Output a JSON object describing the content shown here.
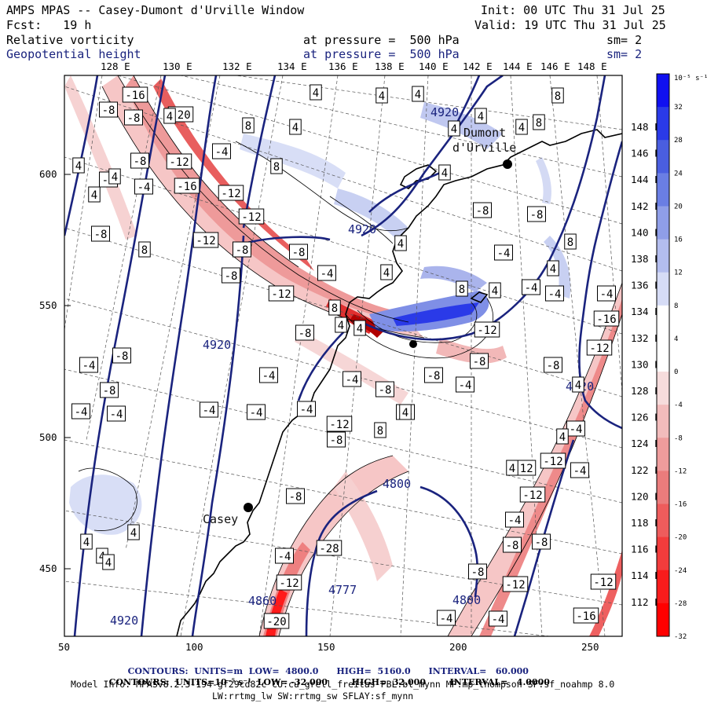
{
  "header": {
    "title": "AMPS MPAS -- Casey-Dumont d'Urville Window",
    "init": "Init: 00 UTC Thu 31 Jul 25",
    "fcst": "Fcst:   19 h",
    "valid": "Valid: 19 UTC Thu 31 Jul 25",
    "field1": "Relative vorticity",
    "field1_level": "at pressure =  500 hPa",
    "field1_sm": "sm= 2",
    "field2": "Geopotential height",
    "field2_level": "at pressure =  500 hPa",
    "field2_sm": "sm= 2"
  },
  "lon_labels_top": [
    "128 E",
    "130 E",
    "132 E",
    "134 E",
    "136 E",
    "138 E",
    "140 E",
    "142 E",
    "144 E",
    "146 E",
    "148 E"
  ],
  "lat_labels_right": [
    "148 E",
    "146 E",
    "144 E",
    "142 E",
    "140 E",
    "138 E",
    "136 E",
    "134 E",
    "132 E",
    "130 E",
    "128 E",
    "126 E",
    "124 E",
    "122 E",
    "120 E",
    "118 E",
    "116 E",
    "114 E",
    "112 E"
  ],
  "x_axis_ticks": [
    "50",
    "100",
    "150",
    "200",
    "250"
  ],
  "y_axis_ticks": [
    "600",
    "550",
    "500",
    "450"
  ],
  "colorbar": {
    "unit_label": "10⁻⁵ s⁻¹",
    "tick_labels": [
      "32",
      "28",
      "24",
      "20",
      "16",
      "12",
      "8",
      "4",
      "0",
      "-4",
      "-8",
      "-12",
      "-16",
      "-20",
      "-24",
      "-28",
      "-32"
    ],
    "colors": [
      "#1010f0",
      "#2a3ae8",
      "#4a5ee0",
      "#6a7ee4",
      "#8f9ee8",
      "#b3bdee",
      "#d6dcf6",
      "#ffffff",
      "#ffffff",
      "#f6dcdc",
      "#f2bcbc",
      "#ee9c9c",
      "#ea7c7c",
      "#ee5c5c",
      "#f23c3c",
      "#f81c1c",
      "#ff0000"
    ]
  },
  "stations": [
    {
      "name": "Dumont\ndUrville",
      "label1": "Dumont",
      "label2": "d'Urville"
    },
    {
      "name": "Casey",
      "label1": "Casey"
    }
  ],
  "height_labels": [
    "4920",
    "4920",
    "4920",
    "4800",
    "4777",
    "4860",
    "4800",
    "4920",
    "4920"
  ],
  "vort_labels": [
    "-16",
    "-20",
    "-8",
    "-8",
    "-4",
    "-8",
    "-12",
    "-16",
    "-12",
    "-4",
    "-4",
    "-8",
    "-12",
    "-8",
    "-12",
    "-12",
    "-8",
    "-8",
    "-4",
    "-8",
    "-4",
    "-4",
    "-4",
    "-8",
    "-4",
    "-4",
    "-4",
    "-8",
    "-12",
    "-8",
    "-8",
    "-4",
    "-4",
    "-8",
    "-4",
    "-4",
    "-12",
    "-8",
    "-4",
    "-12",
    "-12",
    "-8",
    "-12",
    "-16",
    "-4",
    "-8",
    "-12",
    "-4",
    "-4",
    "-8",
    "-8",
    "-4",
    "-4",
    "-4",
    "-4",
    "-4",
    "-12",
    "-20",
    "-28",
    "-8",
    "-8",
    "-12",
    "-4",
    "-16",
    "-12",
    "-8",
    "8",
    "8",
    "4",
    "4",
    "4",
    "4",
    "4",
    "4",
    "4",
    "8",
    "8",
    "4",
    "4",
    "8",
    "4",
    "4",
    "4",
    "8",
    "8",
    "4",
    "4",
    "4",
    "4",
    "4",
    "8",
    "4",
    "4",
    "4",
    "4",
    "4",
    "8",
    "4",
    "4",
    "4",
    "4",
    "-8",
    "-8"
  ],
  "footer": {
    "line1_contours": "CONTOURS:",
    "line1_units": "UNITS=m",
    "line1_low": "LOW=  4800.0",
    "line1_high": "HIGH=  5160.0",
    "line1_interval": "INTERVAL=   60.000",
    "line2_contours": "CONTOURS:",
    "line2_units": "UNITS=10⁻⁵ s⁻¹",
    "line2_low": "LOW= -32.000",
    "line2_high": "HIGH=  32.000",
    "line2_interval": "INTERVAL=   4.0000",
    "model_info": "Model Info: MPASv8.2.3-194-gf29cd82c CU:cu_grell_freitas PBL:bl_mynn MP:mp_thompson SF:sf_noahmp 8.0",
    "model_info2": "LW:rrtmg_lw SW:rrtmg_sw SFLAY:sf_mynn"
  }
}
